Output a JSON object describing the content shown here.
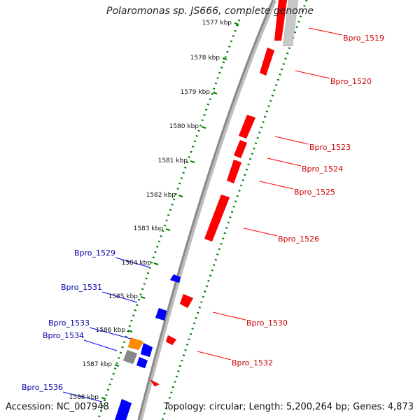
{
  "title": "Polaromonas sp. JS666, complete genome",
  "accession": "Accession: NC_007948",
  "summary": "Topology: circular; Length: 5,200,264 bp; Genes: 4,873",
  "colors": {
    "forward": "#ff0000",
    "reverse": "#0000ff",
    "other": "#ff8c00",
    "pseudo": "#888888",
    "tick": "#008000",
    "forward_label": "#cc0000",
    "reverse_label": "#0000aa",
    "backbone": "#8a8a8a"
  },
  "scale_labels": [
    "1577 kbp",
    "1578 kbp",
    "1579 kbp",
    "1580 kbp",
    "1581 kbp",
    "1582 kbp",
    "1583 kbp",
    "1584 kbp",
    "1585 kbp",
    "1586 kbp",
    "1587 kbp",
    "1588 kbp"
  ],
  "forward_labels": [
    "Bpro_1519",
    "Bpro_1520",
    "Bpro_1523",
    "Bpro_1524",
    "Bpro_1525",
    "Bpro_1526",
    "Bpro_1530",
    "Bpro_1532"
  ],
  "reverse_labels": [
    "Bpro_1529",
    "Bpro_1531",
    "Bpro_1533",
    "Bpro_1534",
    "Bpro_1536"
  ]
}
